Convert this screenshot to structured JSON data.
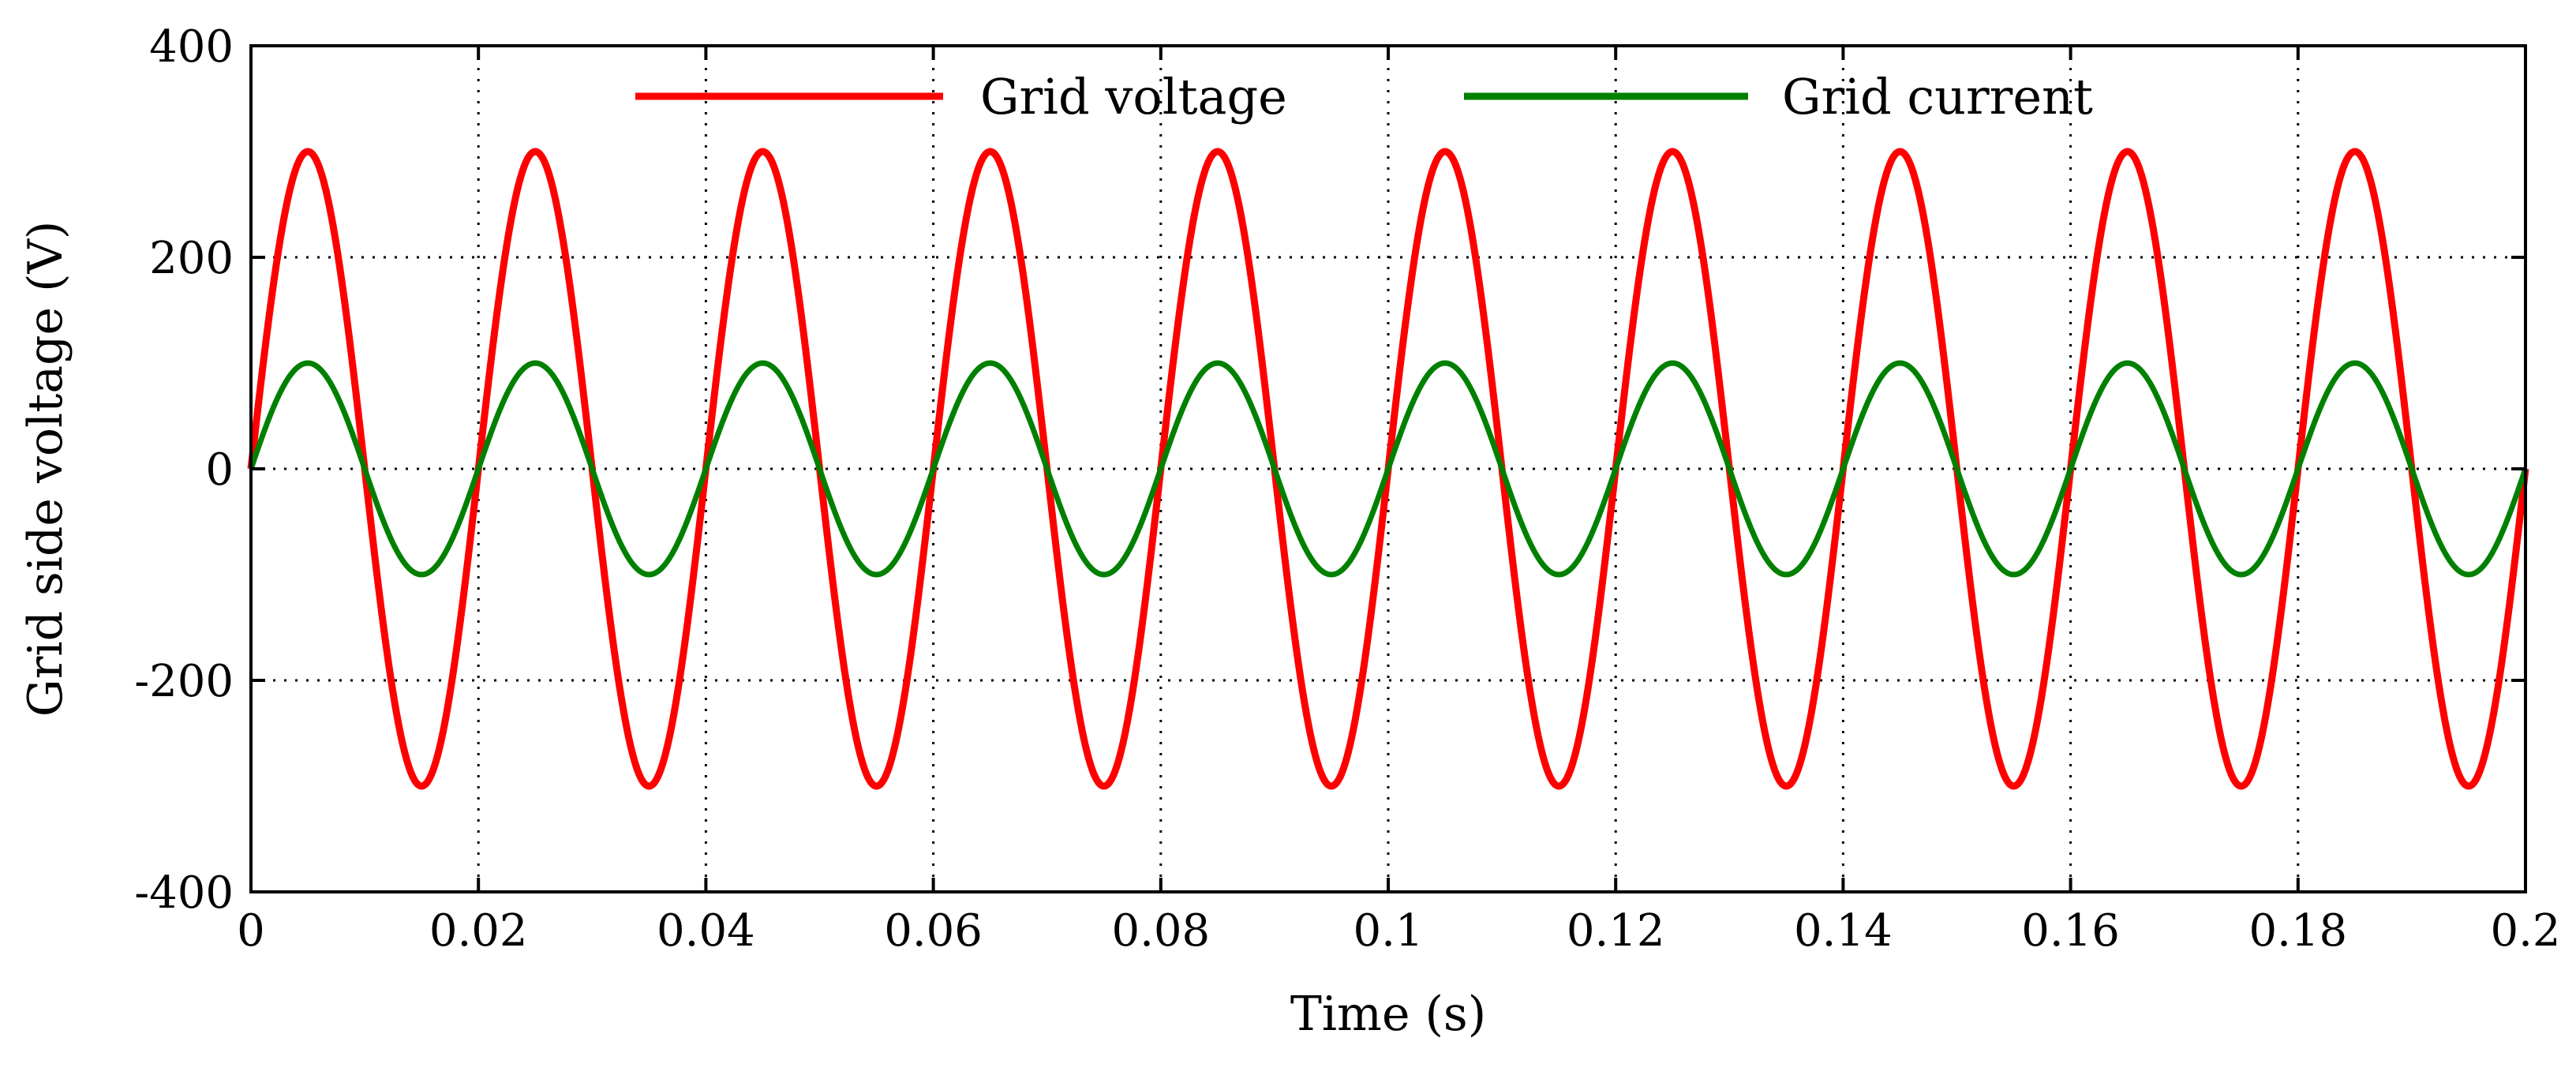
{
  "chart_data": {
    "type": "line",
    "title": "",
    "xlabel": "Time (s)",
    "ylabel": "Grid side voltage (V)",
    "xlim": [
      0,
      0.2
    ],
    "ylim": [
      -400,
      400
    ],
    "xticks": [
      0,
      0.02,
      0.04,
      0.06,
      0.08,
      0.1,
      0.12,
      0.14,
      0.16,
      0.18,
      0.2
    ],
    "xtick_labels": [
      "0",
      "0.02",
      "0.04",
      "0.06",
      "0.08",
      "0.1",
      "0.12",
      "0.14",
      "0.16",
      "0.18",
      "0.2"
    ],
    "yticks": [
      -400,
      -200,
      0,
      200,
      400
    ],
    "ytick_labels": [
      "-400",
      "-200",
      "0",
      "200",
      "400"
    ],
    "grid": true,
    "legend_position": "top",
    "series": [
      {
        "name": "Grid voltage",
        "color": "#ff0000",
        "amplitude": 300,
        "frequency_hz": 50,
        "phase_deg": 0
      },
      {
        "name": "Grid current",
        "color": "#008000",
        "amplitude": 100,
        "frequency_hz": 50,
        "phase_deg": 0
      }
    ]
  }
}
